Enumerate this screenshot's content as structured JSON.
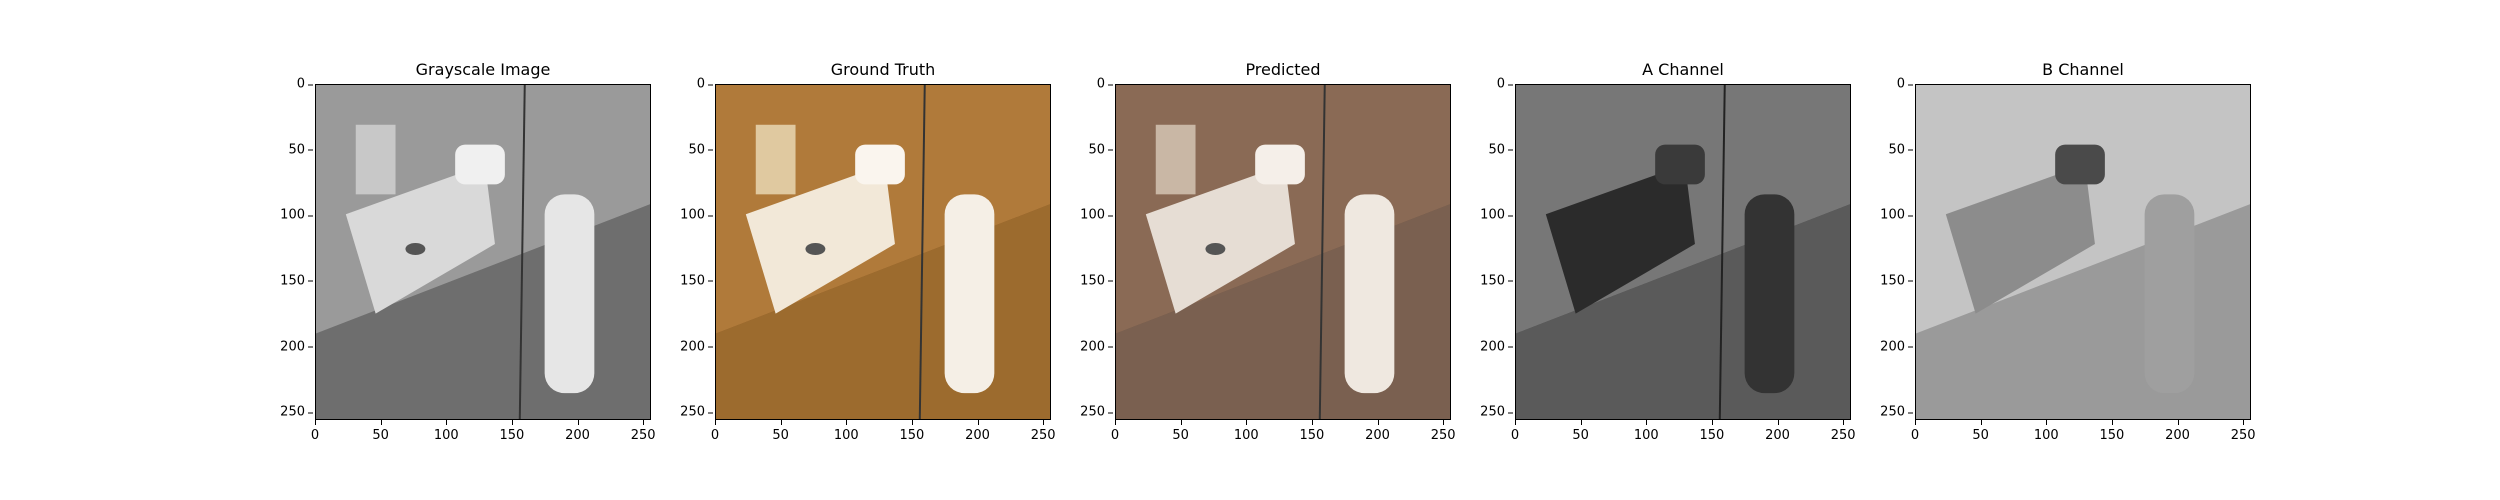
{
  "figure": {
    "panels": [
      {
        "title": "Grayscale Image",
        "tone": "gray"
      },
      {
        "title": "Ground Truth",
        "tone": "warm"
      },
      {
        "title": "Predicted",
        "tone": "muted"
      },
      {
        "title": "A Channel",
        "tone": "dark-gray"
      },
      {
        "title": "B Channel",
        "tone": "light-gray"
      }
    ],
    "y_ticks": [
      "0",
      "50",
      "100",
      "150",
      "200",
      "250"
    ],
    "x_ticks": [
      "0",
      "50",
      "100",
      "150",
      "200",
      "250"
    ],
    "colors": {
      "gray_wall": "#9a9a9a",
      "warm_wall": "#b07a3a",
      "muted_wall": "#8a6a55",
      "dark_gray": "#3b3b3b",
      "light_gray": "#b8b8b8"
    }
  }
}
